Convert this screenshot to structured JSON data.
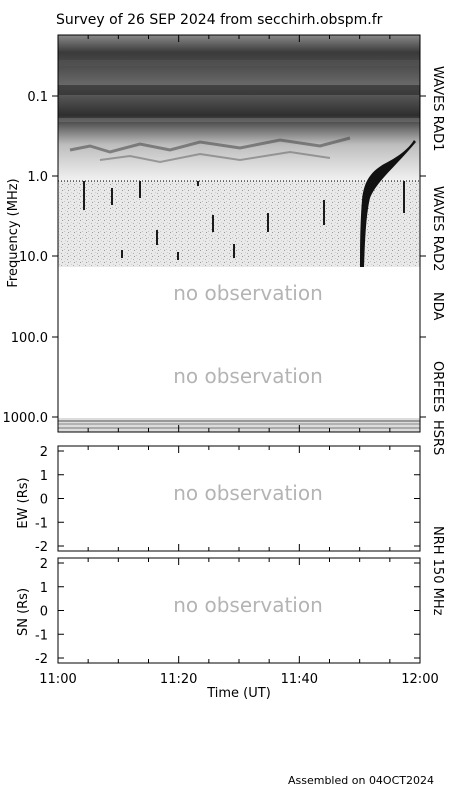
{
  "title": "Survey of 26 SEP 2024 from secchirh.obspm.fr",
  "footer": "Assembled on 04OCT2024",
  "no_observation": "no observation",
  "colors": {
    "axes": "#000000",
    "no_observation_text": "#b4b4b4",
    "background": "#ffffff",
    "spectrogram_dark": "#2a2a2a",
    "spectrogram_light": "#f2f2f2"
  },
  "chart_data": [
    {
      "type": "heatmap",
      "name": "spectrogram",
      "ylabel": "Frequency (MHz)",
      "y_scale": "log",
      "y_reversed": true,
      "yticks": [
        "0.1",
        "1.0",
        "10.0",
        "100.0",
        "1000.0"
      ],
      "xticks": [
        "11:00",
        "11:20",
        "11:40",
        "12:00"
      ],
      "xlim": [
        "11:00",
        "12:00"
      ],
      "bands": [
        {
          "label": "WAVES RAD1",
          "status": "data"
        },
        {
          "label": "WAVES RAD2",
          "status": "data"
        },
        {
          "label": "NDA",
          "status": "no observation"
        },
        {
          "label": "ORFEES",
          "status": "no observation"
        },
        {
          "label": "HSRS",
          "status": "data"
        }
      ],
      "features": [
        {
          "kind": "type III burst",
          "start_time": "11:49",
          "end_time": "11:55"
        }
      ]
    },
    {
      "type": "line",
      "name": "NRH EW",
      "ylabel": "EW (Rs)",
      "yticks": [
        "2",
        "1",
        "0",
        "-1",
        "-2"
      ],
      "ylim": [
        -2,
        2
      ],
      "right_label": "NRH 150 MHz",
      "status": "no observation"
    },
    {
      "type": "line",
      "name": "NRH SN",
      "ylabel": "SN (Rs)",
      "yticks": [
        "2",
        "1",
        "0",
        "-1",
        "-2"
      ],
      "ylim": [
        -2,
        2
      ],
      "xticks": [
        "11:00",
        "11:20",
        "11:40",
        "12:00"
      ],
      "xlabel": "Time (UT)",
      "status": "no observation"
    }
  ]
}
